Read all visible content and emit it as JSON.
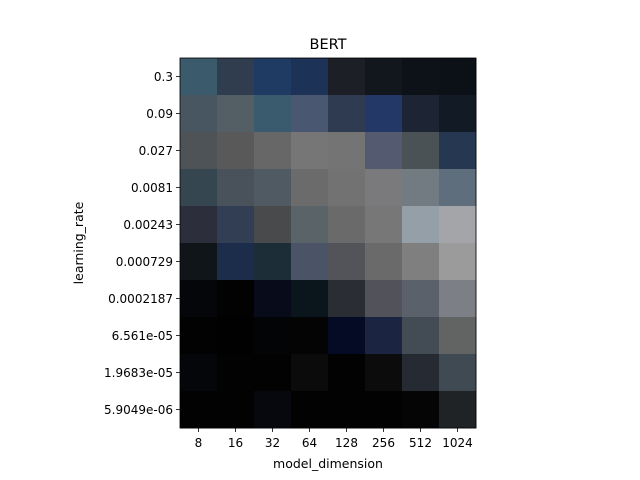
{
  "chart_data": {
    "type": "heatmap",
    "title": "BERT",
    "xlabel": "model_dimension",
    "ylabel": "learning_rate",
    "x_categories": [
      "8",
      "16",
      "32",
      "64",
      "128",
      "256",
      "512",
      "1024"
    ],
    "y_categories": [
      "0.3",
      "0.09",
      "0.027",
      "0.0081",
      "0.00243",
      "0.000729",
      "0.0002187",
      "6.561e-05",
      "1.9683e-05",
      "5.9049e-06"
    ],
    "cell_colors": [
      [
        "#3b5a6c",
        "#2f3d4f",
        "#1f3b63",
        "#1c3257",
        "#1c1f26",
        "#12171e",
        "#0d1218",
        "#0c1117"
      ],
      [
        "#485661",
        "#545e65",
        "#3a5b6d",
        "#4a5771",
        "#2e3b51",
        "#233866",
        "#1d2433",
        "#121a25"
      ],
      [
        "#4e5357",
        "#595959",
        "#676767",
        "#767676",
        "#747474",
        "#545b71",
        "#4b5256",
        "#263752"
      ],
      [
        "#364650",
        "#49525b",
        "#505a63",
        "#6b6b6b",
        "#727272",
        "#7a7a7d",
        "#727a82",
        "#5e6e7c"
      ],
      [
        "#2c2f3b",
        "#313e54",
        "#494a4c",
        "#5a6367",
        "#6a6a6a",
        "#777777",
        "#959fa7",
        "#a4a5a8"
      ],
      [
        "#10151a",
        "#1b2d4a",
        "#1c2d38",
        "#4a5466",
        "#525459",
        "#6a6a6a",
        "#7f7f7f",
        "#9b9b9b"
      ],
      [
        "#04060a",
        "#020202",
        "#070b1a",
        "#0a161c",
        "#2b2d35",
        "#52535a",
        "#5b616b",
        "#7c7f85"
      ],
      [
        "#020202",
        "#010101",
        "#030405",
        "#040404",
        "#060b25",
        "#1b2542",
        "#434c55",
        "#626464"
      ],
      [
        "#040609",
        "#020202",
        "#020202",
        "#0b0b0b",
        "#020202",
        "#0c0c0c",
        "#252a33",
        "#3f4a52"
      ],
      [
        "#020202",
        "#020202",
        "#06080d",
        "#020202",
        "#020202",
        "#020202",
        "#050505",
        "#1f2326"
      ]
    ]
  }
}
